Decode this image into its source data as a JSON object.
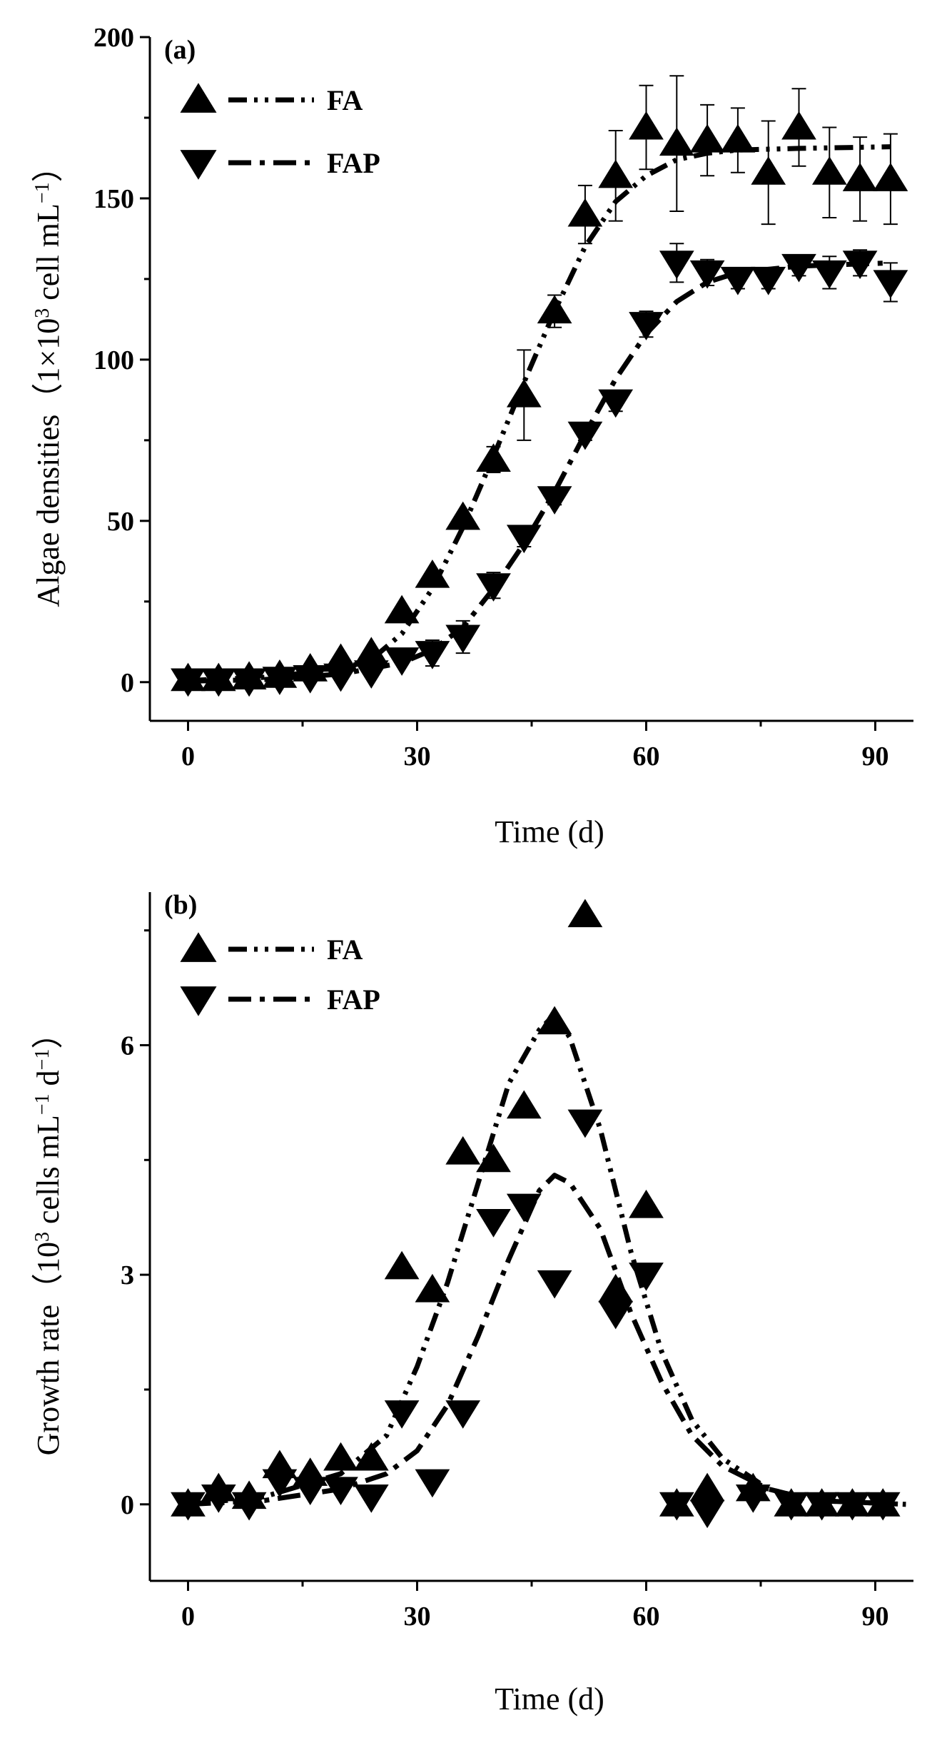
{
  "chart_data": [
    {
      "panel": "(a)",
      "type": "scatter",
      "xlabel": "Time (d)",
      "ylabel_parts": [
        "Algae densities（1×10",
        "3",
        " cell mL",
        "−1",
        "）"
      ],
      "xlim": [
        -5,
        95
      ],
      "ylim": [
        -12,
        200
      ],
      "xticks": [
        0,
        30,
        60,
        90
      ],
      "yticks": [
        0,
        50,
        100,
        150,
        200
      ],
      "legend": [
        {
          "label": "FA",
          "marker": "triangle-up",
          "line": "dash-dot-dot"
        },
        {
          "label": "FAP",
          "marker": "triangle-down",
          "line": "dash-dot"
        }
      ],
      "series": [
        {
          "name": "FA",
          "x": [
            0,
            4,
            8,
            12,
            16,
            20,
            24,
            28,
            32,
            36,
            40,
            44,
            48,
            52,
            56,
            60,
            64,
            68,
            72,
            76,
            80,
            84,
            88,
            92
          ],
          "y": [
            1,
            1,
            1.5,
            2,
            4,
            7,
            9,
            22,
            33,
            51,
            69,
            89,
            115,
            145,
            157,
            172,
            167,
            168,
            168,
            158,
            172,
            158,
            156,
            156
          ],
          "err": [
            0,
            0,
            0,
            0,
            0,
            0,
            0,
            0,
            0,
            0,
            4,
            14,
            5,
            9,
            14,
            13,
            21,
            11,
            10,
            16,
            12,
            14,
            13,
            14
          ],
          "fit_x": [
            0,
            10,
            20,
            24,
            28,
            32,
            36,
            40,
            44,
            48,
            52,
            56,
            60,
            64,
            68,
            72,
            80,
            92
          ],
          "fit_y": [
            0.5,
            1.5,
            4,
            7,
            15,
            29,
            48,
            70,
            93,
            115,
            135,
            149,
            157,
            162,
            164,
            165,
            165.5,
            166
          ]
        },
        {
          "name": "FAP",
          "x": [
            0,
            4,
            8,
            12,
            16,
            20,
            24,
            28,
            32,
            36,
            40,
            44,
            48,
            52,
            56,
            60,
            64,
            68,
            72,
            76,
            80,
            84,
            88,
            92
          ],
          "y": [
            0.5,
            0.5,
            0.5,
            1,
            1.5,
            2,
            3,
            7,
            9,
            14,
            30,
            45,
            57,
            77,
            87,
            111,
            130,
            127,
            125,
            125,
            129,
            127,
            130,
            124
          ],
          "err": [
            0,
            0,
            0,
            0,
            0,
            0,
            0,
            0,
            4,
            5,
            4,
            3,
            2,
            2,
            3,
            4,
            6,
            4,
            3,
            3,
            3,
            5,
            4,
            6
          ],
          "fit_x": [
            0,
            10,
            20,
            28,
            32,
            36,
            40,
            44,
            48,
            52,
            56,
            60,
            64,
            68,
            72,
            80,
            92
          ],
          "fit_y": [
            0.3,
            0.8,
            2.5,
            6,
            10,
            17,
            29,
            43,
            59,
            77,
            94,
            108,
            118,
            124,
            127,
            129,
            130
          ]
        }
      ]
    },
    {
      "panel": "(b)",
      "type": "scatter",
      "xlabel": "Time (d)",
      "ylabel_parts": [
        "Growth rate（10",
        "3",
        " cells mL",
        "−1",
        " d",
        "−1",
        "）"
      ],
      "xlim": [
        -5,
        95
      ],
      "ylim": [
        -1,
        8
      ],
      "xticks": [
        0,
        30,
        60,
        90
      ],
      "yticks": [
        0,
        3,
        6
      ],
      "legend": [
        {
          "label": "FA",
          "marker": "triangle-up",
          "line": "dash-dot-dot"
        },
        {
          "label": "FAP",
          "marker": "triangle-down",
          "line": "dash-dot"
        }
      ],
      "series": [
        {
          "name": "FA",
          "x": [
            0,
            4,
            8,
            12,
            16,
            20,
            24,
            28,
            32,
            36,
            40,
            44,
            48,
            52,
            56,
            60,
            64,
            68,
            74,
            79,
            83,
            87,
            91
          ],
          "y": [
            0,
            0.2,
            0.1,
            0.5,
            0.4,
            0.6,
            0.6,
            3.1,
            2.8,
            4.6,
            4.5,
            5.2,
            6.3,
            7.7,
            2.8,
            3.9,
            0,
            0.2,
            0.2,
            0,
            0,
            0,
            0
          ],
          "fit_x": [
            0,
            10,
            20,
            26,
            30,
            34,
            38,
            42,
            46,
            48,
            50,
            54,
            58,
            62,
            66,
            70,
            76,
            82,
            94
          ],
          "fit_y": [
            0,
            0.1,
            0.4,
            0.9,
            1.8,
            2.9,
            4.2,
            5.5,
            6.2,
            6.4,
            6.1,
            4.9,
            3.3,
            2.0,
            1.1,
            0.6,
            0.2,
            0.05,
            0
          ]
        },
        {
          "name": "FAP",
          "x": [
            0,
            4,
            8,
            12,
            16,
            20,
            24,
            28,
            32,
            36,
            40,
            44,
            48,
            52,
            56,
            60,
            64,
            68,
            74,
            79,
            83,
            87,
            91
          ],
          "y": [
            0,
            0.1,
            0,
            0.3,
            0.2,
            0.2,
            0.1,
            1.2,
            0.3,
            1.2,
            3.7,
            3.9,
            2.9,
            5.0,
            2.5,
            3.0,
            0,
            -0.1,
            0.1,
            0,
            0,
            0,
            0
          ],
          "fit_x": [
            0,
            10,
            20,
            26,
            30,
            34,
            38,
            42,
            46,
            48,
            50,
            54,
            58,
            62,
            66,
            70,
            76,
            82,
            94
          ],
          "fit_y": [
            0,
            0.05,
            0.2,
            0.4,
            0.7,
            1.3,
            2.2,
            3.2,
            4.1,
            4.3,
            4.2,
            3.6,
            2.5,
            1.6,
            0.9,
            0.5,
            0.2,
            0.05,
            0
          ]
        }
      ]
    }
  ]
}
